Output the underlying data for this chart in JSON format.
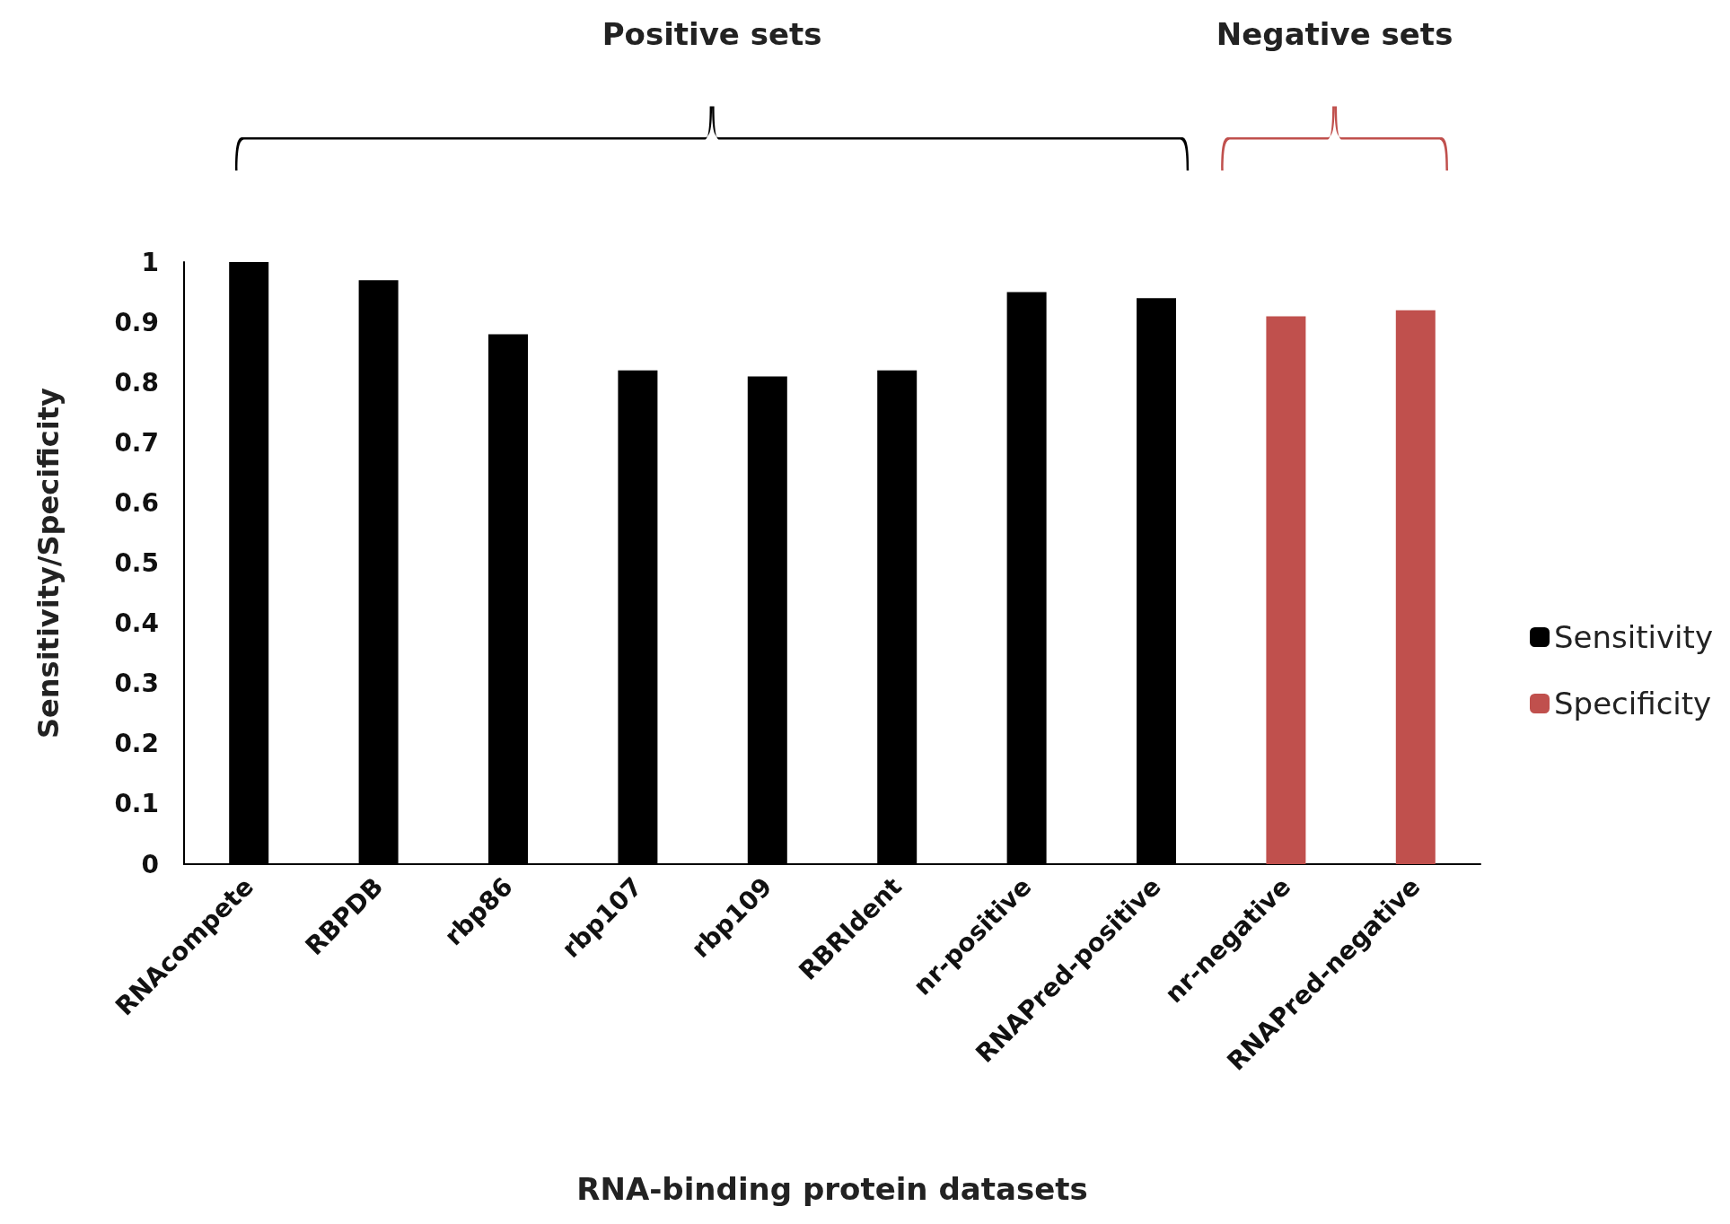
{
  "chart_data": {
    "type": "bar",
    "xlabel": "RNA-binding protein datasets",
    "ylabel": "Sensitivity/Specificity",
    "categories": [
      "RNAcompete",
      "RBPDB",
      "rbp86",
      "rbp107",
      "rbp109",
      "RBRIdent",
      "nr-positive",
      "RNAPred-positive",
      "nr-negative",
      "RNAPred-negative"
    ],
    "series": [
      {
        "name": "Sensitivity",
        "color": "#000000",
        "values": [
          1.0,
          0.97,
          0.88,
          0.82,
          0.81,
          0.82,
          0.95,
          0.94,
          null,
          null
        ]
      },
      {
        "name": "Specificity",
        "color": "#c0504d",
        "values": [
          null,
          null,
          null,
          null,
          null,
          null,
          null,
          null,
          0.91,
          0.92
        ]
      }
    ],
    "annotations": [
      "Positive sets",
      "Negative sets"
    ],
    "ylim": [
      0,
      1
    ],
    "yticks": [
      0,
      0.1,
      0.2,
      0.3,
      0.4,
      0.5,
      0.6,
      0.7,
      0.8,
      0.9,
      1
    ],
    "grid": false,
    "legend": "right"
  }
}
